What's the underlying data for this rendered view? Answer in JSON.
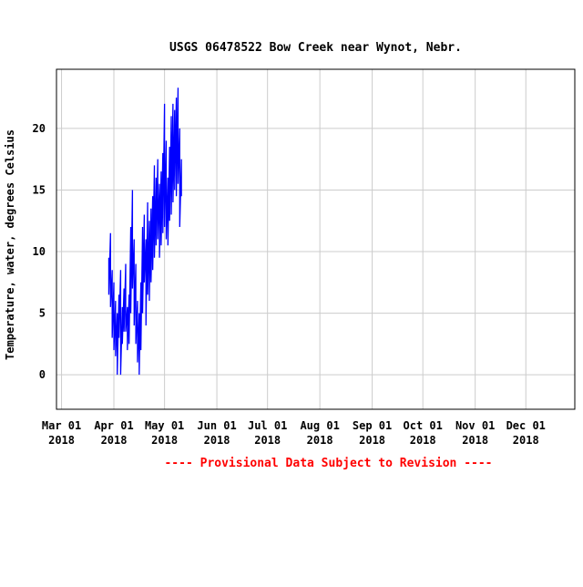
{
  "chart_data": {
    "type": "line",
    "title": "USGS 06478522 Bow Creek near Wynot, Nebr.",
    "ylabel": "Temperature, water, degrees Celsius",
    "xlabel": "",
    "footnote": "---- Provisional Data Subject to Revision ----",
    "x_ticks": [
      {
        "date": "2018-03-01",
        "line1": "Mar 01",
        "line2": "2018"
      },
      {
        "date": "2018-04-01",
        "line1": "Apr 01",
        "line2": "2018"
      },
      {
        "date": "2018-05-01",
        "line1": "May 01",
        "line2": "2018"
      },
      {
        "date": "2018-06-01",
        "line1": "Jun 01",
        "line2": "2018"
      },
      {
        "date": "2018-07-01",
        "line1": "Jul 01",
        "line2": "2018"
      },
      {
        "date": "2018-08-01",
        "line1": "Aug 01",
        "line2": "2018"
      },
      {
        "date": "2018-09-01",
        "line1": "Sep 01",
        "line2": "2018"
      },
      {
        "date": "2018-10-01",
        "line1": "Oct 01",
        "line2": "2018"
      },
      {
        "date": "2018-11-01",
        "line1": "Nov 01",
        "line2": "2018"
      },
      {
        "date": "2018-12-01",
        "line1": "Dec 01",
        "line2": "2018"
      }
    ],
    "y_ticks": [
      0,
      5,
      10,
      15,
      20
    ],
    "xlim": [
      "2018-02-26",
      "2018-12-30"
    ],
    "ylim": [
      -2.8,
      24.8
    ],
    "grid": true,
    "series": [
      {
        "color": "#0000ff",
        "points": [
          [
            "2018-03-29",
            9.5
          ],
          [
            "2018-03-29",
            6.5
          ],
          [
            "2018-03-30",
            11.5
          ],
          [
            "2018-03-30",
            5.5
          ],
          [
            "2018-03-31",
            8.5
          ],
          [
            "2018-03-31",
            3.0
          ],
          [
            "2018-04-01",
            7.5
          ],
          [
            "2018-04-01",
            2.0
          ],
          [
            "2018-04-02",
            6.0
          ],
          [
            "2018-04-02",
            1.5
          ],
          [
            "2018-04-03",
            5.0
          ],
          [
            "2018-04-03",
            0.0
          ],
          [
            "2018-04-04",
            6.5
          ],
          [
            "2018-04-04",
            3.0
          ],
          [
            "2018-04-05",
            8.5
          ],
          [
            "2018-04-05",
            0.0
          ],
          [
            "2018-04-06",
            5.5
          ],
          [
            "2018-04-06",
            2.5
          ],
          [
            "2018-04-07",
            7.0
          ],
          [
            "2018-04-07",
            3.5
          ],
          [
            "2018-04-08",
            9.0
          ],
          [
            "2018-04-08",
            3.5
          ],
          [
            "2018-04-09",
            5.5
          ],
          [
            "2018-04-09",
            2.0
          ],
          [
            "2018-04-10",
            6.5
          ],
          [
            "2018-04-10",
            2.5
          ],
          [
            "2018-04-11",
            12.0
          ],
          [
            "2018-04-11",
            5.0
          ],
          [
            "2018-04-12",
            15.0
          ],
          [
            "2018-04-12",
            7.0
          ],
          [
            "2018-04-13",
            11.0
          ],
          [
            "2018-04-13",
            4.0
          ],
          [
            "2018-04-14",
            9.0
          ],
          [
            "2018-04-14",
            2.5
          ],
          [
            "2018-04-15",
            6.0
          ],
          [
            "2018-04-15",
            1.0
          ],
          [
            "2018-04-16",
            5.0
          ],
          [
            "2018-04-16",
            0.0
          ],
          [
            "2018-04-17",
            7.5
          ],
          [
            "2018-04-17",
            2.0
          ],
          [
            "2018-04-18",
            12.0
          ],
          [
            "2018-04-18",
            5.0
          ],
          [
            "2018-04-19",
            13.0
          ],
          [
            "2018-04-19",
            7.5
          ],
          [
            "2018-04-20",
            11.0
          ],
          [
            "2018-04-20",
            4.0
          ],
          [
            "2018-04-21",
            14.0
          ],
          [
            "2018-04-21",
            6.5
          ],
          [
            "2018-04-22",
            12.5
          ],
          [
            "2018-04-22",
            6.0
          ],
          [
            "2018-04-23",
            13.5
          ],
          [
            "2018-04-23",
            7.5
          ],
          [
            "2018-04-24",
            14.5
          ],
          [
            "2018-04-24",
            8.5
          ],
          [
            "2018-04-25",
            17.0
          ],
          [
            "2018-04-25",
            9.5
          ],
          [
            "2018-04-26",
            16.0
          ],
          [
            "2018-04-26",
            10.5
          ],
          [
            "2018-04-27",
            17.5
          ],
          [
            "2018-04-27",
            11.0
          ],
          [
            "2018-04-28",
            15.5
          ],
          [
            "2018-04-28",
            9.5
          ],
          [
            "2018-04-29",
            16.5
          ],
          [
            "2018-04-29",
            10.5
          ],
          [
            "2018-04-30",
            18.0
          ],
          [
            "2018-04-30",
            11.5
          ],
          [
            "2018-05-01",
            22.0
          ],
          [
            "2018-05-01",
            12.0
          ],
          [
            "2018-05-02",
            19.0
          ],
          [
            "2018-05-02",
            11.0
          ],
          [
            "2018-05-03",
            16.0
          ],
          [
            "2018-05-03",
            10.5
          ],
          [
            "2018-05-04",
            18.5
          ],
          [
            "2018-05-04",
            12.5
          ],
          [
            "2018-05-05",
            21.0
          ],
          [
            "2018-05-05",
            13.0
          ],
          [
            "2018-05-06",
            22.0
          ],
          [
            "2018-05-06",
            14.0
          ],
          [
            "2018-05-07",
            21.5
          ],
          [
            "2018-05-07",
            15.0
          ],
          [
            "2018-05-08",
            22.5
          ],
          [
            "2018-05-08",
            14.5
          ],
          [
            "2018-05-09",
            23.3
          ],
          [
            "2018-05-09",
            15.5
          ],
          [
            "2018-05-10",
            20.0
          ],
          [
            "2018-05-10",
            12.0
          ],
          [
            "2018-05-11",
            17.5
          ],
          [
            "2018-05-11",
            14.5
          ]
        ]
      }
    ]
  }
}
